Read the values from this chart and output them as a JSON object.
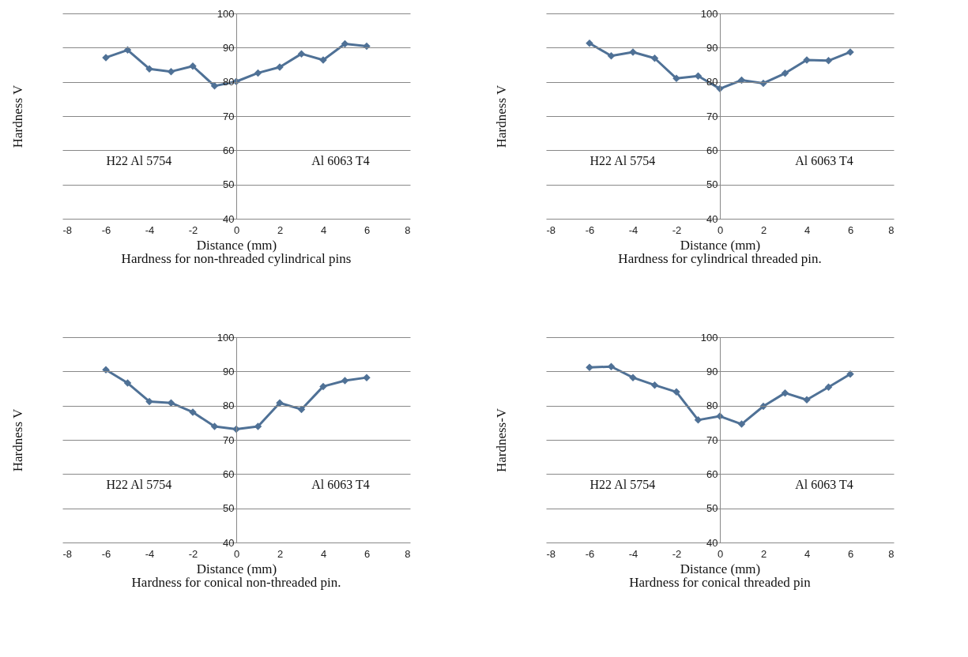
{
  "chart_data": [
    {
      "type": "line",
      "title": "Hardness for non-threaded cylindrical pins",
      "xlabel": "Distance (mm)",
      "ylabel": "Hardness V",
      "annotations": [
        "H22 Al 5754",
        "Al 6063 T4"
      ],
      "x": [
        -6,
        -5,
        -4,
        -3,
        -2,
        -1,
        0,
        1,
        2,
        3,
        4,
        5,
        6
      ],
      "series": [
        {
          "color": "#4f7196",
          "values": [
            87.1,
            89.3,
            83.8,
            83.0,
            84.6,
            78.8,
            80.1,
            82.6,
            84.3,
            88.2,
            86.4,
            91.1,
            90.4
          ]
        }
      ],
      "xlim": [
        -8,
        8
      ],
      "xticks": [
        -8,
        -6,
        -4,
        -2,
        0,
        2,
        4,
        6,
        8
      ],
      "ylim": [
        40,
        100
      ],
      "yticks": [
        40,
        50,
        60,
        70,
        80,
        90,
        100
      ],
      "grid": "y",
      "marker": "diamond",
      "line_style": "solid"
    },
    {
      "type": "line",
      "title": "Hardness for cylindrical threaded pin.",
      "xlabel": "Distance (mm)",
      "ylabel": "Hardness V",
      "annotations": [
        "H22 Al 5754",
        "Al 6063 T4"
      ],
      "x": [
        -6,
        -5,
        -4,
        -3,
        -2,
        -1,
        0,
        1,
        2,
        3,
        4,
        5,
        6
      ],
      "series": [
        {
          "color": "#4f7196",
          "values": [
            91.3,
            87.6,
            88.7,
            86.9,
            81.0,
            81.7,
            78.0,
            80.5,
            79.6,
            82.5,
            86.4,
            86.2,
            88.7
          ]
        }
      ],
      "xlim": [
        -8,
        8
      ],
      "xticks": [
        -8,
        -6,
        -4,
        -2,
        0,
        2,
        4,
        6,
        8
      ],
      "ylim": [
        40,
        100
      ],
      "yticks": [
        40,
        50,
        60,
        70,
        80,
        90,
        100
      ],
      "grid": "y",
      "marker": "diamond",
      "line_style": "solid"
    },
    {
      "type": "line",
      "title": "Hardness for conical  non-threaded pin.",
      "xlabel": "Distance (mm)",
      "ylabel": "Hardness V",
      "annotations": [
        "H22 Al 5754",
        "Al 6063 T4"
      ],
      "x": [
        -6,
        -5,
        -4,
        -3,
        -2,
        -1,
        0,
        1,
        2,
        3,
        4,
        5,
        6
      ],
      "series": [
        {
          "color": "#4f7196",
          "values": [
            90.5,
            86.6,
            81.2,
            80.8,
            78.1,
            73.9,
            73.1,
            73.9,
            80.8,
            78.9,
            85.6,
            87.3,
            88.2
          ]
        }
      ],
      "xlim": [
        -8,
        8
      ],
      "xticks": [
        -8,
        -6,
        -4,
        -2,
        0,
        2,
        4,
        6,
        8
      ],
      "ylim": [
        40,
        100
      ],
      "yticks": [
        40,
        50,
        60,
        70,
        80,
        90,
        100
      ],
      "grid": "y",
      "marker": "diamond",
      "line_style": "solid"
    },
    {
      "type": "line",
      "title": "Hardness for conical threaded pin",
      "xlabel": "Distance (mm)",
      "ylabel": "Hardness-V",
      "annotations": [
        "H22 Al 5754",
        "Al 6063 T4"
      ],
      "x": [
        -6,
        -5,
        -4,
        -3,
        -2,
        -1,
        0,
        1,
        2,
        3,
        4,
        5,
        6
      ],
      "series": [
        {
          "color": "#4f7196",
          "values": [
            91.2,
            91.4,
            88.2,
            86.0,
            84.0,
            75.8,
            76.9,
            74.6,
            79.8,
            83.7,
            81.7,
            85.4,
            89.2
          ]
        }
      ],
      "xlim": [
        -8,
        8
      ],
      "xticks": [
        -8,
        -6,
        -4,
        -2,
        0,
        2,
        4,
        6,
        8
      ],
      "ylim": [
        40,
        100
      ],
      "yticks": [
        40,
        50,
        60,
        70,
        80,
        90,
        100
      ],
      "grid": "y",
      "marker": "diamond",
      "line_style": "solid"
    }
  ]
}
